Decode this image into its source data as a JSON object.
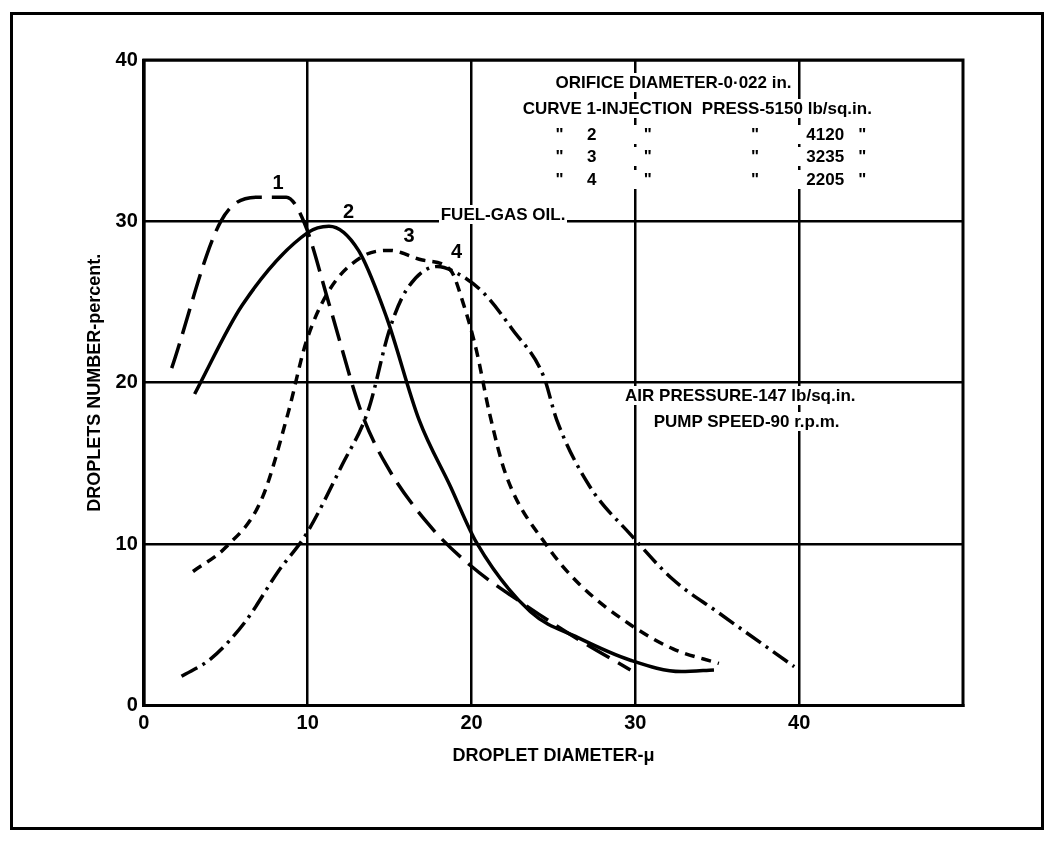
{
  "chart_data": {
    "type": "line",
    "xlabel": "DROPLET DIAMETER-μ",
    "ylabel": "DROPLETS NUMBER-percent.",
    "xlim": [
      0,
      50
    ],
    "xticks": [
      0,
      10,
      20,
      30,
      40
    ],
    "ylim": [
      0,
      40
    ],
    "yticks": [
      0,
      10,
      20,
      30,
      40
    ],
    "grid": true,
    "legend": false,
    "marker": "none",
    "annotations": [
      "ORIFICE DIAMETER-0·022 in.",
      "CURVE 1-INJECTION  PRESS-5150 lb/sq.in.",
      "\"     2          \"                     \"          4120   \"",
      "\"     3          \"                     \"          3235   \"",
      "\"     4          \"                     \"          2205   \"",
      "FUEL-GAS OIL.",
      "AIR PRESSURE-147 lb/sq.in.",
      "PUMP SPEED-90 r.p.m."
    ],
    "series": [
      {
        "name": "1",
        "color": "#000000",
        "line_style": "longdash",
        "x": [
          1.7,
          4.7,
          7,
          8.7,
          9.8,
          11.3,
          13.3,
          14.8,
          17.4,
          19.9,
          23.6,
          26.5,
          29.7
        ],
        "values": [
          20.9,
          30,
          31.5,
          31.5,
          29.9,
          24.9,
          18.1,
          14.9,
          11.2,
          8.7,
          6,
          4.1,
          2.2
        ]
      },
      {
        "name": "2",
        "color": "#000000",
        "line_style": "solid",
        "x": [
          3.1,
          6,
          10,
          11.3,
          13.1,
          14.8,
          16.8,
          18.7,
          20.3,
          23.6,
          26.5,
          29.7,
          32.8,
          34.8
        ],
        "values": [
          19.3,
          24.8,
          29.3,
          29.7,
          28.2,
          24.1,
          17.7,
          13.6,
          10.1,
          5.8,
          4.2,
          2.8,
          2.1,
          2.2
        ]
      },
      {
        "name": "3",
        "color": "#000000",
        "line_style": "dashed",
        "x": [
          3,
          5,
          7.2,
          8.8,
          9.9,
          11.3,
          13.3,
          15,
          17,
          18.7,
          19.5,
          20.3,
          21.1,
          22.1,
          24.6,
          26.6,
          29.7,
          32.3,
          35.1
        ],
        "values": [
          8.3,
          9.8,
          12.8,
          18.1,
          22.5,
          25.7,
          27.8,
          28.2,
          27.6,
          27,
          24.9,
          22,
          18.1,
          14.3,
          9.9,
          7.5,
          5,
          3.5,
          2.6
        ]
      },
      {
        "name": "4",
        "color": "#000000",
        "line_style": "dashdot",
        "x": [
          2.3,
          4.1,
          6.2,
          8.2,
          9.9,
          12.1,
          13.7,
          15,
          16,
          17.9,
          19.1,
          20.7,
          22.5,
          24.4,
          25.2,
          27.2,
          29.7,
          32.3,
          35,
          39.7
        ],
        "values": [
          1.8,
          2.9,
          5.2,
          8.3,
          10.6,
          14.9,
          18.3,
          23.3,
          25.7,
          27.2,
          26.8,
          25.6,
          23.3,
          20.4,
          17.7,
          13.6,
          10.6,
          7.8,
          5.8,
          2.4
        ]
      }
    ]
  }
}
